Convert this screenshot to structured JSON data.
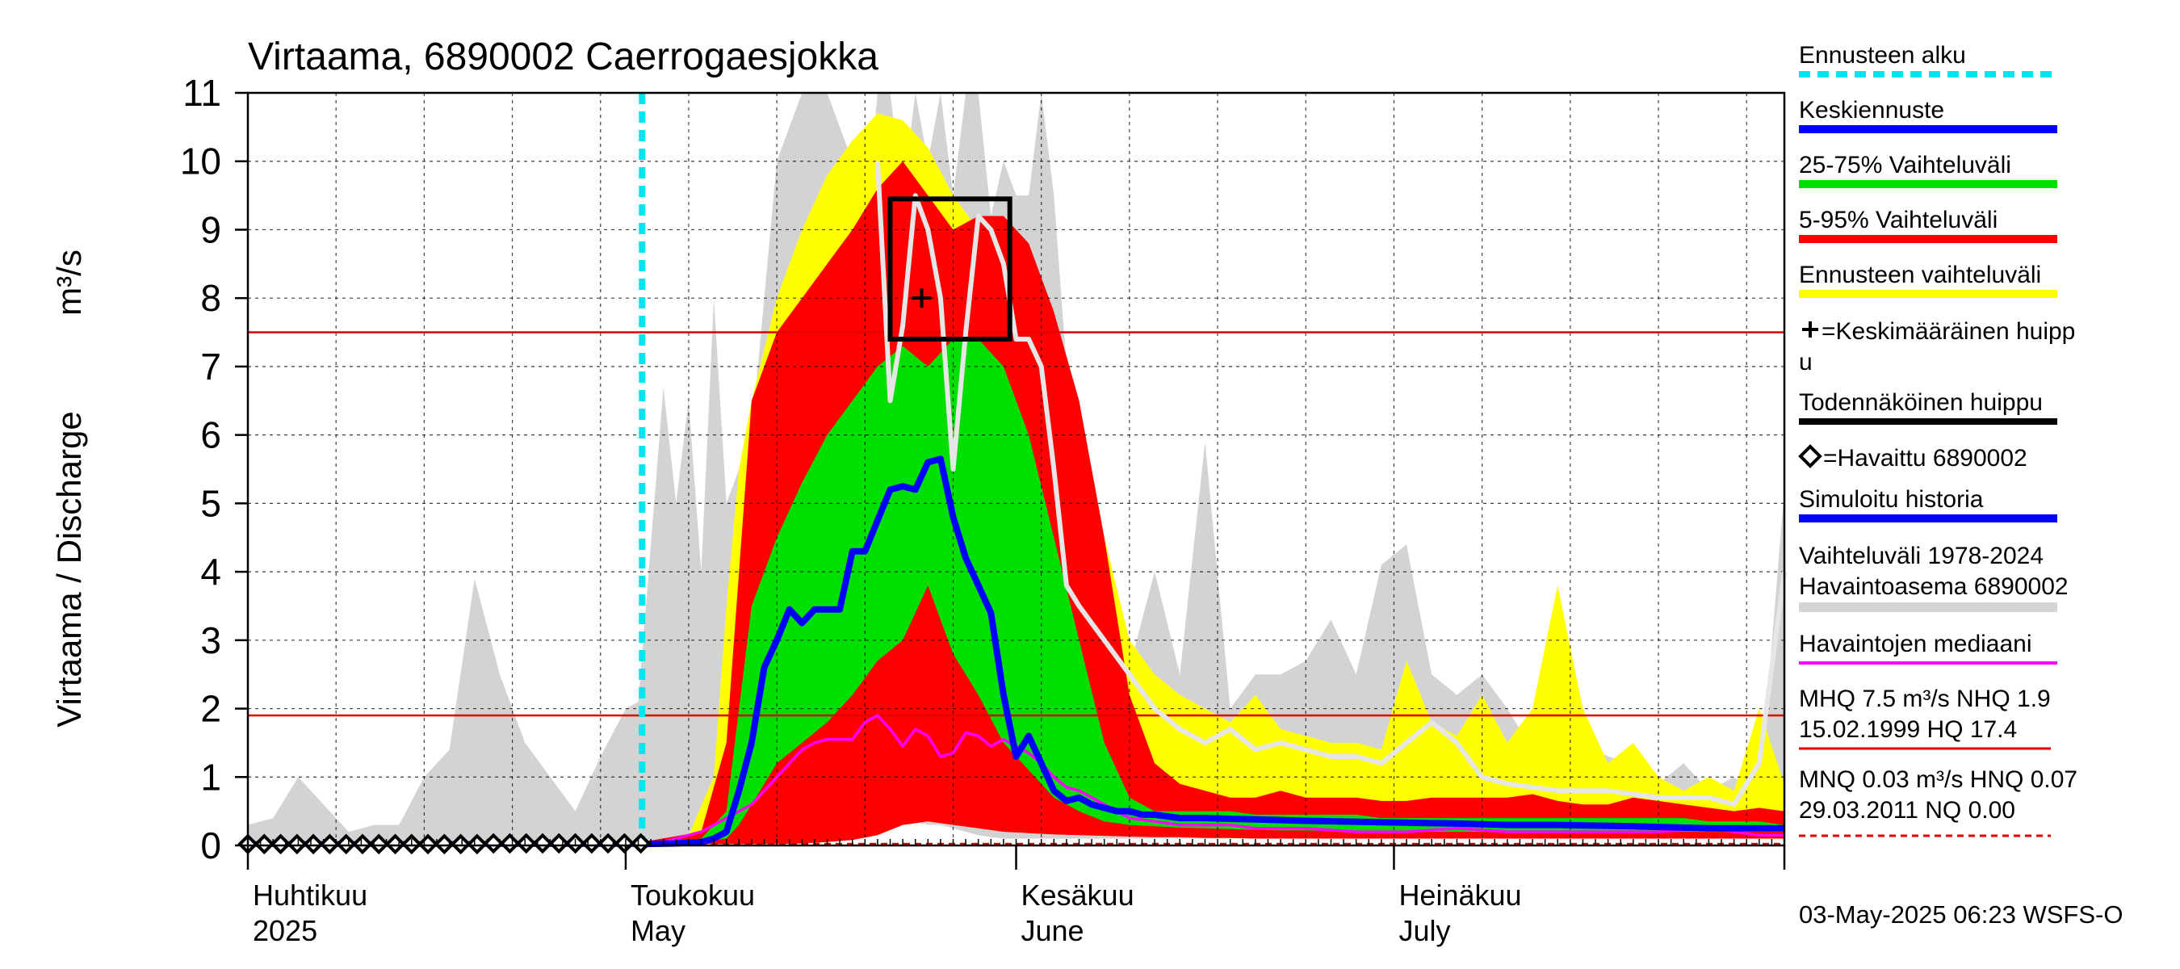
{
  "chart_data": {
    "type": "area",
    "title": "Virtaama, 6890002 Caerrogaesjokka",
    "ylabel": "Virtaama / Discharge",
    "yunit": "m³/s",
    "ylim": [
      0,
      11
    ],
    "yticks": [
      0,
      1,
      2,
      3,
      4,
      5,
      6,
      7,
      8,
      9,
      10,
      11
    ],
    "xlim": [
      0,
      122
    ],
    "x_unit": "days since 1 April 2025",
    "month_ticks": [
      {
        "day": 0,
        "fi": "Huhtikuu",
        "en": "2025"
      },
      {
        "day": 30,
        "fi": "Toukokuu",
        "en": "May"
      },
      {
        "day": 61,
        "fi": "Kesäkuu",
        "en": "June"
      },
      {
        "day": 91,
        "fi": "Heinäkuu",
        "en": "July"
      }
    ],
    "forecast_start_day": 31.3,
    "reference_lines": [
      {
        "name": "MHQ",
        "value": 7.5
      },
      {
        "name": "NHQ",
        "value": 1.9
      },
      {
        "name": "NQ",
        "value": 0.0
      }
    ],
    "history_range_1978_2024": {
      "x": [
        0,
        2,
        4,
        6,
        8,
        10,
        12,
        14,
        16,
        18,
        20,
        22,
        24,
        26,
        28,
        30,
        31,
        33,
        34,
        35,
        36,
        37,
        38,
        40,
        42,
        44,
        46,
        48,
        49,
        50,
        51,
        52,
        53,
        54,
        55,
        56,
        57,
        58,
        59,
        60,
        61,
        62,
        63,
        64,
        65,
        66,
        67,
        68,
        69,
        70,
        72,
        74,
        76,
        78,
        80,
        82,
        84,
        86,
        88,
        90,
        92,
        94,
        96,
        98,
        100,
        102,
        104,
        106,
        108,
        110,
        112,
        114,
        116,
        118,
        120,
        122
      ],
      "high": [
        0.3,
        0.4,
        1.0,
        0.6,
        0.2,
        0.3,
        0.3,
        1.0,
        1.4,
        3.9,
        2.5,
        1.5,
        1.0,
        0.5,
        1.3,
        2.0,
        2.1,
        6.7,
        5.0,
        6.5,
        4.0,
        8.0,
        5.0,
        6.0,
        10.0,
        11.0,
        11.0,
        10.0,
        9.0,
        11.0,
        11.0,
        9.5,
        11.0,
        10.0,
        11.0,
        9.5,
        11.0,
        11.0,
        9.2,
        10.0,
        9.5,
        9.5,
        11.0,
        9.5,
        7.0,
        6.0,
        5.5,
        4.5,
        3.5,
        2.6,
        4.0,
        2.5,
        5.9,
        2.0,
        2.5,
        2.5,
        2.7,
        3.3,
        2.5,
        4.1,
        4.4,
        2.5,
        2.2,
        2.5,
        2.0,
        1.4,
        1.9,
        1.5,
        1.3,
        1.2,
        0.9,
        1.2,
        0.8,
        1.0,
        0.7,
        5.2
      ],
      "low": [
        0.03,
        0.03,
        0.03,
        0.03,
        0.03,
        0.03,
        0.03,
        0.03,
        0.03,
        0.03,
        0.03,
        0.03,
        0.03,
        0.03,
        0.03,
        0.05,
        0.05,
        0.05,
        0.05,
        0.05,
        0.05,
        0.05,
        0.05,
        0.05,
        0.05,
        0.07,
        0.1,
        0.15,
        0.2,
        0.25,
        0.3,
        0.35,
        0.35,
        0.3,
        0.3,
        0.25,
        0.2,
        0.15,
        0.12,
        0.1,
        0.1,
        0.1,
        0.1,
        0.1,
        0.1,
        0.1,
        0.1,
        0.1,
        0.1,
        0.1,
        0.1,
        0.1,
        0.1,
        0.1,
        0.1,
        0.1,
        0.1,
        0.1,
        0.1,
        0.1,
        0.1,
        0.1,
        0.1,
        0.1,
        0.1,
        0.1,
        0.1,
        0.1,
        0.1,
        0.1,
        0.1,
        0.1,
        0.1,
        0.1,
        0.1,
        0.1
      ]
    },
    "forecast_range": {
      "x": [
        31.3,
        35,
        37,
        38,
        39,
        40,
        42,
        44,
        46,
        48,
        50,
        52,
        54,
        56,
        58,
        60,
        62,
        64,
        66,
        68,
        70,
        72,
        74,
        76,
        78,
        80,
        82,
        84,
        86,
        88,
        90,
        92,
        94,
        96,
        98,
        100,
        102,
        104,
        106,
        108,
        110,
        112,
        114,
        116,
        118,
        120,
        122
      ],
      "high": [
        0.05,
        0.15,
        1.0,
        3.5,
        5.5,
        6.5,
        8.0,
        9.0,
        9.8,
        10.3,
        10.7,
        10.6,
        10.2,
        9.5,
        9.0,
        8.2,
        7.5,
        6.8,
        6.0,
        4.5,
        3.0,
        2.5,
        2.2,
        2.0,
        1.8,
        2.2,
        1.7,
        1.6,
        1.5,
        1.5,
        1.4,
        2.7,
        1.8,
        1.6,
        2.2,
        1.5,
        2.0,
        3.8,
        2.0,
        1.2,
        1.5,
        1.0,
        0.8,
        1.0,
        0.8,
        2.0,
        0.9
      ],
      "low": [
        0.02,
        0.02,
        0.02,
        0.02,
        0.02,
        0.02,
        0.02,
        0.03,
        0.05,
        0.1,
        0.2,
        0.5,
        0.6,
        0.5,
        0.4,
        0.3,
        0.25,
        0.2,
        0.18,
        0.15,
        0.14,
        0.13,
        0.12,
        0.12,
        0.11,
        0.11,
        0.1,
        0.1,
        0.1,
        0.1,
        0.1,
        0.1,
        0.1,
        0.1,
        0.1,
        0.1,
        0.1,
        0.1,
        0.1,
        0.1,
        0.1,
        0.1,
        0.1,
        0.1,
        0.1,
        0.1,
        0.1
      ]
    },
    "p5_95": {
      "x": [
        31.3,
        36,
        38,
        39,
        40,
        42,
        44,
        46,
        48,
        50,
        52,
        54,
        56,
        58,
        60,
        62,
        64,
        66,
        68,
        70,
        72,
        74,
        76,
        78,
        80,
        82,
        84,
        86,
        88,
        90,
        92,
        94,
        96,
        98,
        100,
        102,
        104,
        106,
        108,
        110,
        112,
        114,
        116,
        118,
        120,
        122
      ],
      "high": [
        0.05,
        0.2,
        1.5,
        4.0,
        6.5,
        7.5,
        8.0,
        8.5,
        9.0,
        9.6,
        10.0,
        9.5,
        9.0,
        9.2,
        9.2,
        8.8,
        7.8,
        6.5,
        4.5,
        2.2,
        1.2,
        0.9,
        0.8,
        0.7,
        0.7,
        0.8,
        0.7,
        0.7,
        0.7,
        0.65,
        0.65,
        0.7,
        0.7,
        0.7,
        0.7,
        0.75,
        0.65,
        0.6,
        0.6,
        0.7,
        0.65,
        0.6,
        0.55,
        0.5,
        0.55,
        0.5
      ],
      "low": [
        0.02,
        0.02,
        0.02,
        0.02,
        0.02,
        0.02,
        0.03,
        0.05,
        0.08,
        0.15,
        0.3,
        0.35,
        0.3,
        0.25,
        0.2,
        0.18,
        0.16,
        0.15,
        0.14,
        0.13,
        0.12,
        0.12,
        0.11,
        0.11,
        0.1,
        0.1,
        0.1,
        0.1,
        0.1,
        0.1,
        0.1,
        0.1,
        0.1,
        0.1,
        0.1,
        0.1,
        0.1,
        0.1,
        0.1,
        0.1,
        0.1,
        0.1,
        0.1,
        0.1,
        0.1,
        0.1
      ]
    },
    "p25_75": {
      "x": [
        31.3,
        36,
        38,
        39,
        40,
        42,
        44,
        46,
        48,
        50,
        52,
        54,
        56,
        58,
        60,
        62,
        64,
        66,
        68,
        70,
        72,
        74,
        76,
        78,
        80,
        82,
        84,
        86,
        88,
        90,
        92,
        94,
        96,
        98,
        100,
        102,
        104,
        106,
        108,
        110,
        112,
        114,
        116,
        118,
        120,
        122
      ],
      "high": [
        0.04,
        0.1,
        0.5,
        2.0,
        3.5,
        4.5,
        5.3,
        6.0,
        6.5,
        7.0,
        7.3,
        7.0,
        7.4,
        7.4,
        7.0,
        6.0,
        4.5,
        3.0,
        1.5,
        0.7,
        0.5,
        0.5,
        0.5,
        0.5,
        0.45,
        0.45,
        0.45,
        0.45,
        0.45,
        0.4,
        0.4,
        0.4,
        0.4,
        0.4,
        0.4,
        0.4,
        0.4,
        0.4,
        0.4,
        0.4,
        0.4,
        0.4,
        0.35,
        0.35,
        0.35,
        0.3
      ],
      "low": [
        0.03,
        0.05,
        0.1,
        0.3,
        0.6,
        1.2,
        1.5,
        1.8,
        2.2,
        2.7,
        3.0,
        3.8,
        2.8,
        2.2,
        1.5,
        1.1,
        0.7,
        0.5,
        0.35,
        0.3,
        0.28,
        0.26,
        0.25,
        0.24,
        0.23,
        0.22,
        0.22,
        0.21,
        0.21,
        0.2,
        0.2,
        0.2,
        0.2,
        0.2,
        0.2,
        0.2,
        0.2,
        0.2,
        0.2,
        0.2,
        0.2,
        0.2,
        0.2,
        0.2,
        0.2,
        0.2
      ]
    },
    "forecast_mean": {
      "x": [
        31.3,
        34,
        36,
        37,
        38,
        39,
        40,
        41,
        42,
        43,
        44,
        45,
        46,
        47,
        48,
        49,
        50,
        51,
        52,
        53,
        54,
        55,
        56,
        57,
        58,
        59,
        60,
        61,
        62,
        63,
        64,
        65,
        66,
        67,
        68,
        69,
        70,
        71,
        72,
        74,
        76,
        80,
        84,
        90,
        96,
        100,
        104,
        110,
        116,
        122
      ],
      "values": [
        0.02,
        0.03,
        0.05,
        0.1,
        0.2,
        0.8,
        1.5,
        2.6,
        3.0,
        3.45,
        3.25,
        3.45,
        3.45,
        3.45,
        4.3,
        4.3,
        4.75,
        5.2,
        5.25,
        5.2,
        5.6,
        5.65,
        4.8,
        4.2,
        3.8,
        3.4,
        2.2,
        1.3,
        1.6,
        1.2,
        0.8,
        0.65,
        0.7,
        0.6,
        0.55,
        0.5,
        0.5,
        0.45,
        0.45,
        0.4,
        0.4,
        0.38,
        0.36,
        0.34,
        0.32,
        0.3,
        0.3,
        0.28,
        0.25,
        0.25
      ]
    },
    "observed_median": {
      "x": [
        0,
        5,
        10,
        15,
        20,
        25,
        30,
        33,
        36,
        38,
        40,
        42,
        44,
        45,
        46,
        47,
        48,
        49,
        50,
        51,
        52,
        53,
        54,
        55,
        56,
        57,
        58,
        59,
        60,
        61,
        62,
        63,
        64,
        65,
        66,
        68,
        70,
        72,
        74,
        78,
        80,
        84,
        88,
        92,
        96,
        100,
        104,
        108,
        112,
        116,
        120,
        122
      ],
      "values": [
        0.02,
        0.02,
        0.02,
        0.03,
        0.05,
        0.05,
        0.04,
        0.05,
        0.2,
        0.4,
        0.6,
        1.0,
        1.4,
        1.5,
        1.55,
        1.55,
        1.55,
        1.8,
        1.9,
        1.7,
        1.45,
        1.7,
        1.6,
        1.3,
        1.35,
        1.65,
        1.6,
        1.45,
        1.55,
        1.45,
        1.35,
        1.2,
        1.0,
        0.85,
        0.8,
        0.6,
        0.4,
        0.35,
        0.3,
        0.3,
        0.25,
        0.25,
        0.2,
        0.2,
        0.25,
        0.2,
        0.2,
        0.2,
        0.2,
        0.25,
        0.15,
        0.15
      ]
    },
    "simulated_history": {
      "x": [
        0,
        31.3
      ],
      "values": [
        0.02,
        0.02
      ]
    },
    "observed_points": {
      "x": [
        0,
        1.3,
        2.6,
        3.9,
        5.2,
        6.5,
        7.8,
        9.1,
        10.4,
        11.7,
        13,
        14.3,
        15.6,
        16.9,
        18.2,
        19.5,
        20.8,
        22.1,
        23.4,
        24.7,
        26,
        27.3,
        28.6,
        29.9,
        31.2
      ],
      "values": [
        0.02,
        0.02,
        0.02,
        0.02,
        0.02,
        0.02,
        0.02,
        0.02,
        0.02,
        0.02,
        0.02,
        0.02,
        0.02,
        0.02,
        0.02,
        0.03,
        0.03,
        0.03,
        0.03,
        0.03,
        0.03,
        0.03,
        0.03,
        0.03,
        0.03
      ]
    },
    "historical_year_curve": {
      "x": [
        50,
        51,
        52,
        53,
        54,
        55,
        56,
        57,
        58,
        59,
        60,
        61,
        62,
        63,
        64,
        65,
        66,
        68,
        70,
        72,
        74,
        76,
        78,
        80,
        82,
        84,
        86,
        88,
        90,
        92,
        94,
        96,
        98,
        100,
        104,
        108,
        112,
        116,
        118,
        120,
        122
      ],
      "values": [
        10.0,
        6.5,
        7.6,
        9.5,
        9.0,
        8.0,
        5.5,
        7.5,
        9.2,
        9.0,
        8.5,
        7.4,
        7.4,
        7.0,
        5.5,
        3.8,
        3.5,
        3.0,
        2.5,
        2.0,
        1.7,
        1.5,
        1.7,
        1.4,
        1.5,
        1.4,
        1.3,
        1.3,
        1.2,
        1.5,
        1.8,
        1.5,
        1.0,
        0.9,
        0.8,
        0.8,
        0.7,
        0.7,
        0.6,
        1.2,
        4.0
      ]
    },
    "mean_peak": {
      "day": 53.5,
      "value": 8.0
    },
    "probable_peak": {
      "day_start": 51,
      "day_end": 60.5,
      "low": 7.4,
      "high": 9.45
    },
    "legend": [
      {
        "label": "Ennusteen alku",
        "color": "#00e5ee"
      },
      {
        "label": "Keskiennuste",
        "color": "#0000ff"
      },
      {
        "label": "25-75% Vaihteluväli",
        "color": "#00e000"
      },
      {
        "label": "5-95% Vaihteluväli",
        "color": "#ff0000"
      },
      {
        "label": "Ennusteen vaihteluväli",
        "color": "#ffff00"
      },
      {
        "label": "=Keskimääräinen huipp",
        "label2": "u",
        "color": "#000000"
      },
      {
        "label": "Todennäköinen huippu",
        "color": "#000000"
      },
      {
        "label": "=Havaittu 6890002",
        "color": "#000000"
      },
      {
        "label": "Simuloitu historia",
        "color": "#0000ff"
      },
      {
        "label": "Vaihteluväli 1978-2024",
        "label2": " Havaintoasema 6890002",
        "color": "#d3d3d3"
      },
      {
        "label": "Havaintojen mediaani",
        "color": "#ff00ff"
      }
    ],
    "stats": {
      "line1": "MHQ  7.5 m³/s NHQ  1.9",
      "line2": "15.02.1999 HQ 17.4",
      "line3": "MNQ 0.03 m³/s HNQ 0.07",
      "line4": "29.03.2011 NQ 0.00"
    },
    "timestamp": "03-May-2025 06:23 WSFS-O",
    "colors": {
      "history": "#d3d3d3",
      "forecast_range": "#ffff00",
      "p5_95": "#ff0000",
      "p25_75": "#00e000",
      "mean": "#0000ff",
      "median": "#ff00ff",
      "forecast_start": "#00e5ee",
      "ref_line": "#e00000"
    }
  }
}
